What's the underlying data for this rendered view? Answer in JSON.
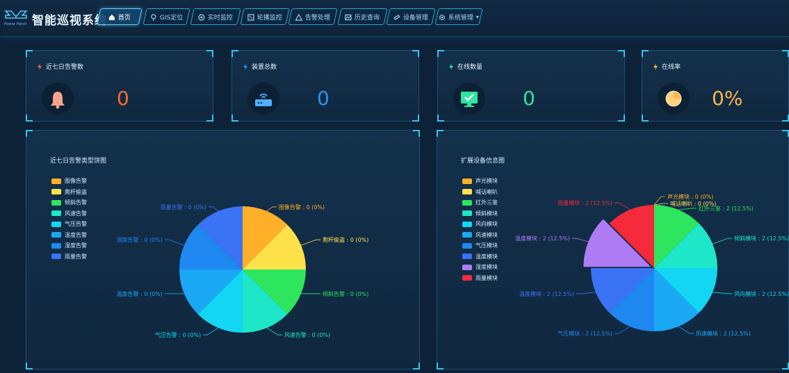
{
  "header": {
    "logo_text": "Power Patch",
    "app_title": "智能巡视系统",
    "nav": [
      {
        "label": "首页",
        "icon": "home-icon",
        "active": true
      },
      {
        "label": "GIS定位",
        "icon": "location-pin-icon",
        "active": false
      },
      {
        "label": "实时监控",
        "icon": "monitor-icon",
        "active": false
      },
      {
        "label": "轮播监控",
        "icon": "carousel-icon",
        "active": false
      },
      {
        "label": "告警处理",
        "icon": "warning-icon",
        "active": false
      },
      {
        "label": "历史查询",
        "icon": "history-icon",
        "active": false
      },
      {
        "label": "设备管理",
        "icon": "device-icon",
        "active": false
      },
      {
        "label": "系统管理",
        "icon": "gear-icon",
        "active": false,
        "dropdown": true
      }
    ]
  },
  "stats": [
    {
      "title": "近七日告警数",
      "value": "0",
      "icon": "bell-icon",
      "color": "#ff6a2c",
      "bolt_color": "#ff6a2c"
    },
    {
      "title": "装置总数",
      "value": "0",
      "icon": "router-icon",
      "color": "#2196f3",
      "bolt_color": "#2196f3"
    },
    {
      "title": "在线数量",
      "value": "0",
      "icon": "monitor-check-icon",
      "color": "#2ee6a0",
      "bolt_color": "#2ee6a0"
    },
    {
      "title": "在线率",
      "value": "0%",
      "icon": "pie-icon",
      "color": "#ffb64c",
      "bolt_color": "#ffb64c"
    }
  ],
  "alarm_panel": {
    "title": "近七日告警类型饼图",
    "legend": [
      "图像告警",
      "爬杆偷盗",
      "倾斜告警",
      "风速告警",
      "气压告警",
      "温度告警",
      "湿度告警",
      "雨量告警"
    ],
    "colors": [
      "#ffb028",
      "#ffe14a",
      "#2ee65e",
      "#1ee6c8",
      "#13d6f2",
      "#1aa8f5",
      "#1e88f0",
      "#3a74f5"
    ],
    "labels": [
      "图像告警 : 0 (0%)",
      "爬杆偷盗 : 0 (0%)",
      "倾斜告警 : 0 (0%)",
      "风速告警 : 0 (0%)",
      "气压告警 : 0 (0%)",
      "温度告警 : 0 (0%)",
      "湿度告警 : 0 (0%)",
      "雨量告警 : 0 (0%)"
    ]
  },
  "device_panel": {
    "title": "扩展设备信息图",
    "legend": [
      "声光模块",
      "喊话喇叭",
      "红外三鉴",
      "倾斜模块",
      "风向模块",
      "风速模块",
      "气压模块",
      "温度模块",
      "湿度模块",
      "雨量模块"
    ],
    "colors": [
      "#ffb028",
      "#ffe14a",
      "#2ee65e",
      "#1ee6c8",
      "#13d6f2",
      "#1aa8f5",
      "#1e88f0",
      "#3a74f5",
      "#b07cf5",
      "#f52a3a"
    ],
    "labels": [
      "声光模块 : 0 (0%)",
      "喊话喇叭 : 0 (0%)",
      "红外三鉴 : 2 (12.5%)",
      "倾斜模块 : 2 (12.5%)",
      "风向模块 : 2 (12.5%)",
      "风速模块 : 2 (12.5%)",
      "气压模块 : 2 (12.5%)",
      "温度模块 : 2 (12.5%)",
      "湿度模块 : 2 (12.5%)",
      "雨量模块 : 2 (12.5%)"
    ]
  },
  "chart_data": [
    {
      "type": "pie",
      "title": "近七日告警类型饼图",
      "categories": [
        "图像告警",
        "爬杆偷盗",
        "倾斜告警",
        "风速告警",
        "气压告警",
        "温度告警",
        "湿度告警",
        "雨量告警"
      ],
      "values": [
        0,
        0,
        0,
        0,
        0,
        0,
        0,
        0
      ],
      "legend_position": "left"
    },
    {
      "type": "pie",
      "title": "扩展设备信息图",
      "categories": [
        "声光模块",
        "喊话喇叭",
        "红外三鉴",
        "倾斜模块",
        "风向模块",
        "风速模块",
        "气压模块",
        "温度模块",
        "湿度模块",
        "雨量模块"
      ],
      "values": [
        0,
        0,
        2,
        2,
        2,
        2,
        2,
        2,
        2,
        2
      ],
      "percent": [
        0,
        0,
        12.5,
        12.5,
        12.5,
        12.5,
        12.5,
        12.5,
        12.5,
        12.5
      ],
      "highlighted": "湿度模块",
      "legend_position": "left"
    }
  ]
}
